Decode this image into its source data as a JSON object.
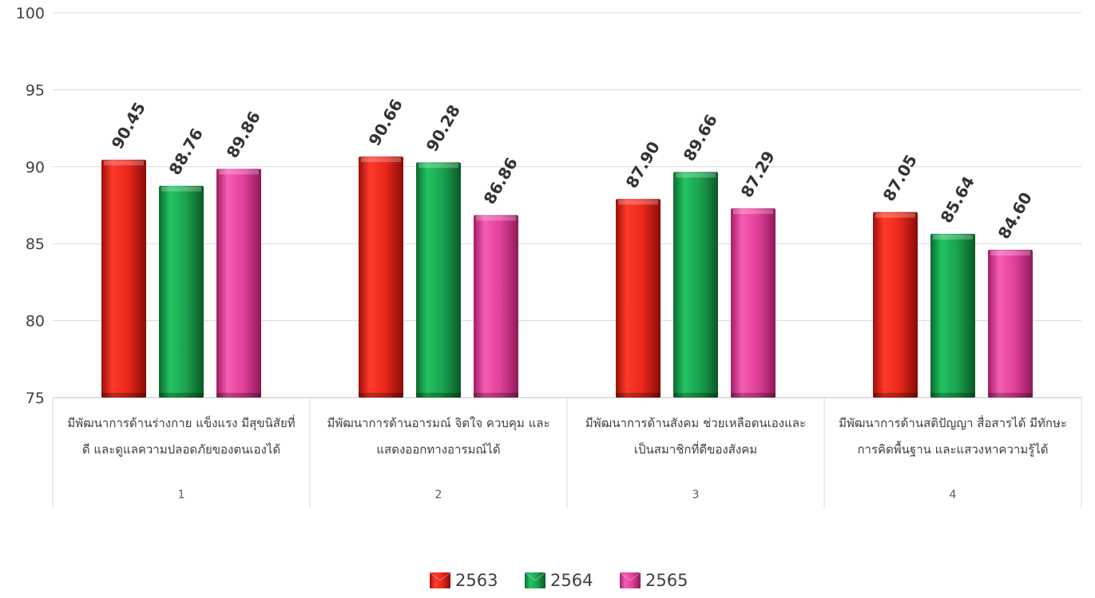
{
  "chart_data": {
    "type": "bar",
    "ylim": [
      75,
      100
    ],
    "yticks": [
      75,
      80,
      85,
      90,
      95,
      100
    ],
    "grid": true,
    "legend_position": "bottom",
    "categories": [
      {
        "group": "1",
        "label_lines": [
          "มีพัฒนาการด้านร่างกาย แข็งแรง  มีสุขนิสัยที่",
          "ดี และดูแลความปลอดภัยของตนเองได้"
        ]
      },
      {
        "group": "2",
        "label_lines": [
          "มีพัฒนาการด้านอารมณ์ จิตใจ ควบคุม และ",
          "แสดงออกทางอารมณ์ได้"
        ]
      },
      {
        "group": "3",
        "label_lines": [
          "มีพัฒนาการด้านสังคม ช่วยเหลือตนเองและ",
          "เป็นสมาชิกที่ดีของสังคม"
        ]
      },
      {
        "group": "4",
        "label_lines": [
          "มีพัฒนาการด้านสติปัญญา สื่อสารได้ มีทักษะ",
          "การคิดพื้นฐาน และแสวงหาความรู้ได้"
        ]
      }
    ],
    "series": [
      {
        "name": "2563",
        "color": "#e8271b",
        "values": [
          90.45,
          90.66,
          87.9,
          87.05
        ]
      },
      {
        "name": "2564",
        "color": "#1aa24e",
        "values": [
          88.76,
          90.28,
          89.66,
          85.64
        ]
      },
      {
        "name": "2565",
        "color": "#e2409a",
        "values": [
          89.86,
          86.86,
          87.29,
          84.6
        ]
      }
    ]
  }
}
